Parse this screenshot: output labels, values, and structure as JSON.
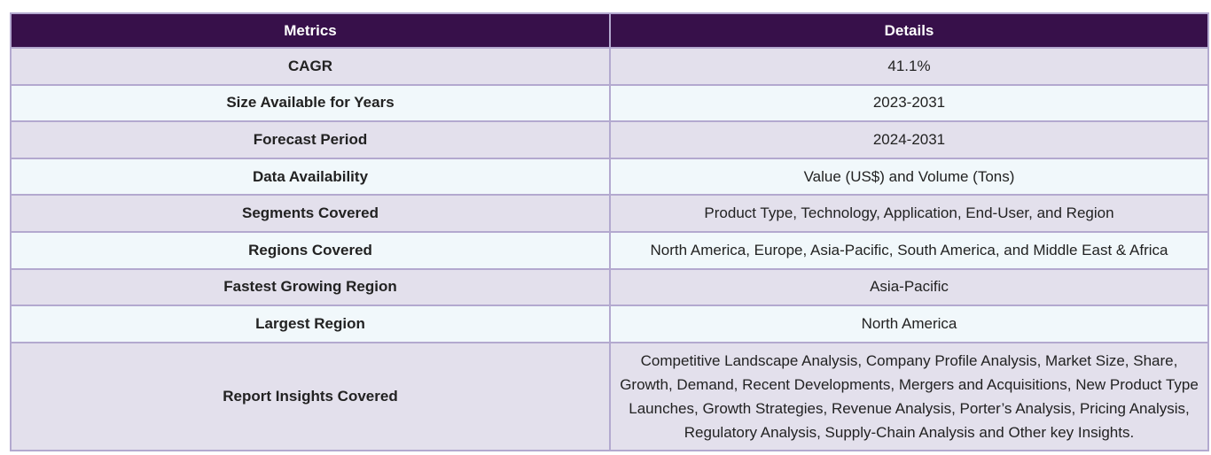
{
  "table": {
    "headers": [
      "Metrics",
      "Details"
    ],
    "rows": [
      {
        "metric": "CAGR",
        "detail": "41.1%"
      },
      {
        "metric": "Size Available for Years",
        "detail": "2023-2031"
      },
      {
        "metric": "Forecast Period",
        "detail": "2024-2031"
      },
      {
        "metric": "Data Availability",
        "detail": "Value (US$) and Volume (Tons)"
      },
      {
        "metric": "Segments Covered",
        "detail": "Product Type, Technology, Application, End-User, and Region"
      },
      {
        "metric": "Regions Covered",
        "detail": "North America, Europe, Asia-Pacific, South America, and Middle East & Africa"
      },
      {
        "metric": "Fastest Growing Region",
        "detail": "Asia-Pacific"
      },
      {
        "metric": "Largest Region",
        "detail": "North America"
      },
      {
        "metric": "Report Insights Covered",
        "detail": "Competitive Landscape Analysis, Company Profile Analysis, Market Size, Share, Growth, Demand, Recent Developments, Mergers and Acquisitions, New Product Type Launches, Growth Strategies, Revenue Analysis, Porter’s Analysis, Pricing Analysis, Regulatory Analysis, Supply-Chain Analysis and Other key Insights."
      }
    ]
  },
  "colors": {
    "header_bg": "#37104a",
    "row_odd_bg": "#e3e0ec",
    "row_even_bg": "#f1f8fb",
    "border": "#b3a9cf"
  }
}
